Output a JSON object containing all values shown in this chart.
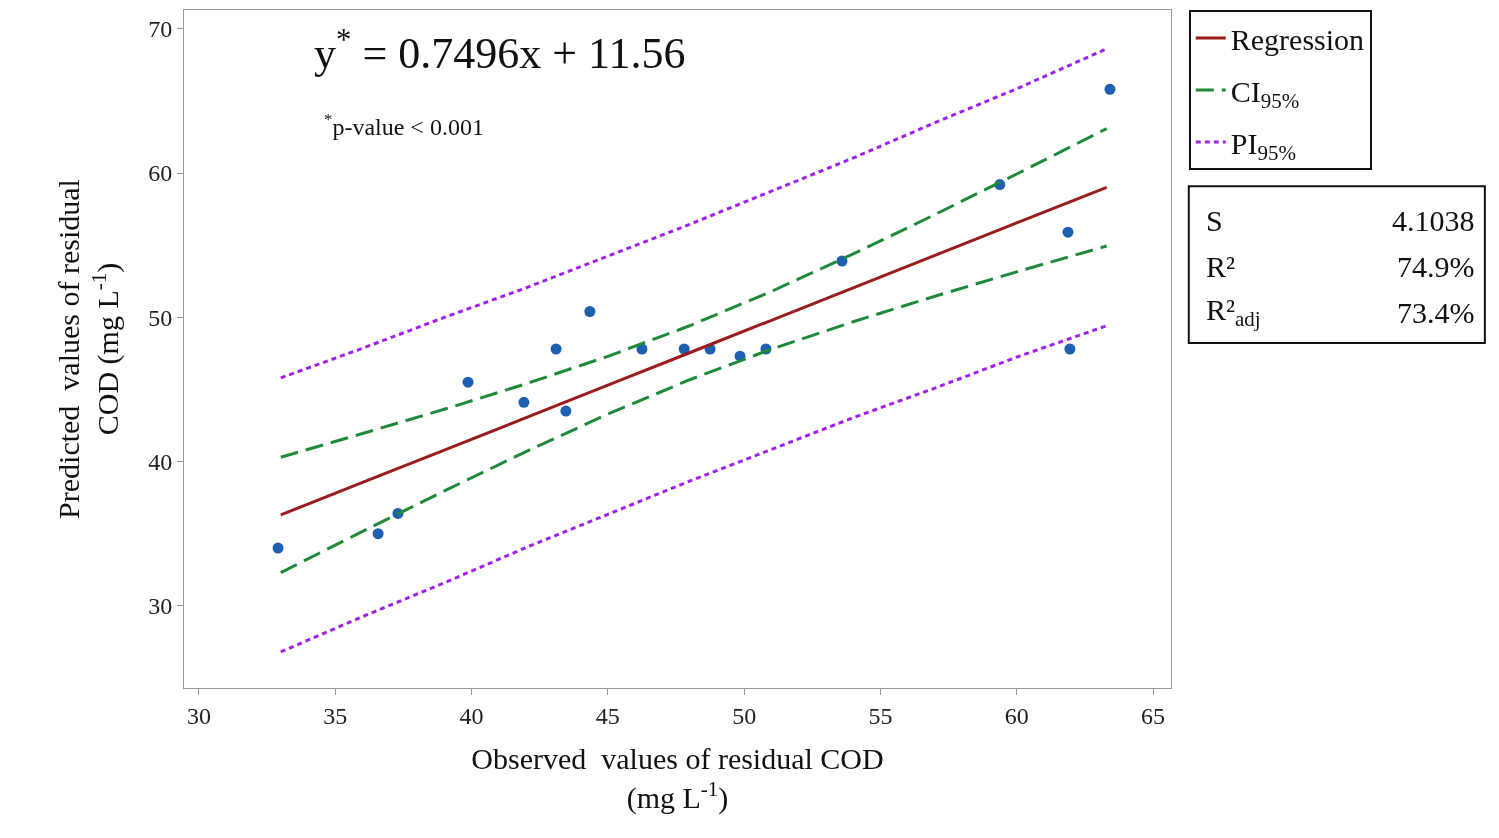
{
  "chart_data": {
    "type": "line",
    "xlabel": "Observed  values of residual COD\n(mg L$^{-1}$)",
    "ylabel": "Predicted  values of residual\nCOD (mg L$^{-1}$)",
    "xlim": [
      29.45,
      65.66
    ],
    "ylim": [
      24.3,
      71.3
    ],
    "xticks": [
      30,
      35,
      40,
      45,
      50,
      55,
      60,
      65
    ],
    "yticks": [
      30,
      40,
      50,
      60,
      70
    ],
    "grid": false,
    "legend": "top right",
    "series": [
      {
        "type": "scatter",
        "marker": "circle",
        "color": "#1f5fb0",
        "x": [
          32.9,
          36.57,
          37.3,
          39.87,
          41.92,
          43.1,
          43.46,
          44.34,
          46.25,
          47.8,
          48.75,
          49.85,
          50.8,
          53.59,
          59.38,
          61.88,
          61.95,
          63.42
        ],
        "values": [
          34.0,
          35.0,
          36.4,
          45.5,
          44.1,
          47.8,
          43.5,
          50.4,
          47.8,
          47.8,
          47.8,
          47.3,
          47.8,
          53.9,
          59.2,
          55.9,
          47.8,
          65.8
        ]
      },
      {
        "name": "Regression",
        "color": "#9b1c1c",
        "line_style": "solid",
        "x": [
          33,
          36,
          39,
          42,
          45,
          48,
          51,
          54,
          57,
          60,
          63.3
        ],
        "values": [
          36.3,
          38.55,
          40.79,
          43.04,
          45.29,
          47.54,
          49.79,
          52.04,
          54.29,
          56.54,
          59.01
        ]
      },
      {
        "name": "CI$_{95%}$",
        "color": "#1e8a3a",
        "line_style": "dashed",
        "x": [
          33,
          36,
          39,
          42,
          45,
          48,
          51,
          54,
          57,
          60,
          63.3
        ],
        "values": [
          40.3,
          41.94,
          43.62,
          45.39,
          47.29,
          49.41,
          51.79,
          54.39,
          57.12,
          59.93,
          63.08
        ]
      },
      {
        "color": "#1e8a3a",
        "line_style": "dashed",
        "x": [
          33,
          36,
          39,
          42,
          45,
          48,
          51,
          54,
          57,
          60,
          63.3
        ],
        "values": [
          32.3,
          35.16,
          37.96,
          40.69,
          43.29,
          45.67,
          47.79,
          49.69,
          51.46,
          53.15,
          54.94
        ]
      },
      {
        "name": "PI$_{95%}$",
        "color": "#a020f0",
        "line_style": "dotted",
        "x": [
          33,
          36,
          39,
          42,
          45,
          48,
          51,
          54,
          57,
          60,
          63.3
        ],
        "values": [
          45.8,
          47.85,
          49.99,
          52.04,
          54.24,
          56.44,
          58.74,
          61.04,
          63.49,
          65.84,
          68.61
        ]
      },
      {
        "color": "#a020f0",
        "line_style": "dotted",
        "x": [
          33,
          36,
          39,
          42,
          45,
          48,
          51,
          54,
          57,
          60,
          63.3
        ],
        "values": [
          26.8,
          29.25,
          31.59,
          34.04,
          36.34,
          38.64,
          40.84,
          43.04,
          45.09,
          47.24,
          49.41
        ]
      }
    ],
    "annotations": [
      "y$^{*}$ = 0.7496x + 11.56",
      "$^{*}$p-value < 0.001",
      "S",
      "4.1038",
      "R²",
      "74.9%",
      "R²$_{adj}$",
      "73.4%"
    ]
  }
}
